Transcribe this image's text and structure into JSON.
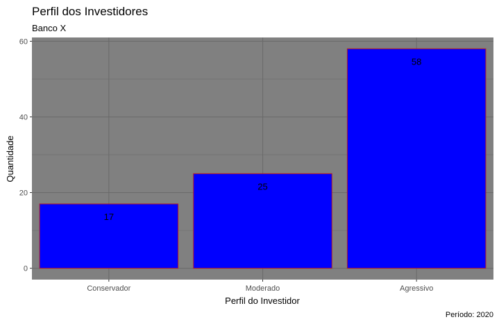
{
  "chart_data": {
    "type": "bar",
    "title": "Perfil dos Investidores",
    "subtitle": "Banco X",
    "xlabel": "Perfil do Investidor",
    "ylabel": "Quantidade",
    "caption": "Período: 2020",
    "categories": [
      "Conservador",
      "Moderado",
      "Agressivo"
    ],
    "values": [
      17,
      25,
      58
    ],
    "ylim": [
      -3,
      61
    ],
    "yticks": [
      0,
      20,
      40,
      60
    ],
    "grid": true,
    "legend": "none",
    "colors": {
      "bar_fill": "#0000ff",
      "bar_border": "#b2182b",
      "panel_background": "#808080",
      "grid": "#6b6b6b"
    }
  }
}
